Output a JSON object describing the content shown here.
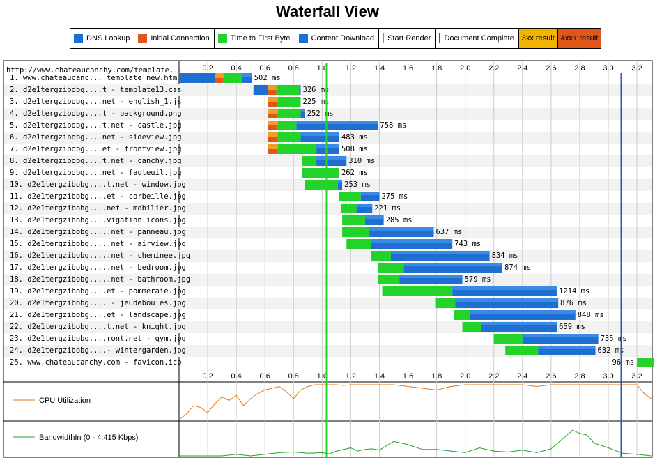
{
  "page_title": "Waterfall View",
  "legend": [
    {
      "label": "DNS Lookup",
      "kind": "swatch",
      "color": "#1f6fd0"
    },
    {
      "label": "Initial Connection",
      "kind": "swatch",
      "color": "#e0551a"
    },
    {
      "label": "Time to First Byte",
      "kind": "swatch",
      "color": "#22d32a"
    },
    {
      "label": "Content Download",
      "kind": "swatch",
      "color": "#1f6fd0"
    },
    {
      "label": "Start Render",
      "kind": "line",
      "color": "#22d32a"
    },
    {
      "label": "Document Complete",
      "kind": "line",
      "color": "#1f5fb0"
    },
    {
      "label": "3xx result",
      "kind": "fill",
      "color": "#f0b400"
    },
    {
      "label": "4xx+ result",
      "kind": "fill",
      "color": "#e0551a"
    }
  ],
  "chart_data": {
    "type": "waterfall",
    "url_header": "http://www.chateaucanchy.com/template...",
    "time_unit": "s",
    "xlim": [
      0,
      3.3
    ],
    "ticks": [
      "0.2",
      "0.4",
      "0.6",
      "0.8",
      "1.0",
      "1.2",
      "1.4",
      "1.6",
      "1.8",
      "2.0",
      "2.2",
      "2.4",
      "2.6",
      "2.8",
      "3.0",
      "3.2"
    ],
    "start_render": 1.03,
    "document_complete": 3.09,
    "requests": [
      {
        "label": "1. www.chateaucanc... template_new.html",
        "dns": [
          0.0,
          0.25
        ],
        "connect": [
          0.25,
          0.31
        ],
        "ttfb": [
          0.31,
          0.44
        ],
        "download": [
          0.44,
          0.51
        ],
        "duration": "502 ms",
        "ssl": true
      },
      {
        "label": "2. d2e1tergzibobg....t - template13.css",
        "dns": [
          0.52,
          0.62
        ],
        "connect": [
          0.62,
          0.68
        ],
        "ttfb": [
          0.68,
          0.84
        ],
        "download": [
          0.84,
          0.85
        ],
        "duration": "326 ms",
        "ssl": true
      },
      {
        "label": "3. d2e1tergzibobg....net - english_1.js",
        "connect": [
          0.62,
          0.69
        ],
        "ttfb": [
          0.69,
          0.85
        ],
        "download": [
          0.85,
          0.85
        ],
        "duration": "225 ms",
        "ssl": true
      },
      {
        "label": "4. d2e1tergzibobg....t - background.png",
        "connect": [
          0.62,
          0.69
        ],
        "ttfb": [
          0.69,
          0.85
        ],
        "download": [
          0.85,
          0.88
        ],
        "duration": "252 ms",
        "ssl": true
      },
      {
        "label": "5. d2e1tergzibobg....t.net - castle.jpg",
        "connect": [
          0.62,
          0.69
        ],
        "ttfb": [
          0.69,
          0.82
        ],
        "download": [
          0.82,
          1.39
        ],
        "duration": "758 ms",
        "ssl": true
      },
      {
        "label": "6. d2e1tergzibobg....net - sideview.jpg",
        "connect": [
          0.62,
          0.69
        ],
        "ttfb": [
          0.69,
          0.85
        ],
        "download": [
          0.85,
          1.12
        ],
        "duration": "483 ms",
        "ssl": true
      },
      {
        "label": "7. d2e1tergzibobg....et - frontview.jpg",
        "connect": [
          0.62,
          0.69
        ],
        "ttfb": [
          0.69,
          0.96
        ],
        "download": [
          0.96,
          1.12
        ],
        "duration": "508 ms",
        "ssl": true
      },
      {
        "label": "8. d2e1tergzibobg....t.net - canchy.jpg",
        "ttfb": [
          0.86,
          0.96
        ],
        "download": [
          0.96,
          1.17
        ],
        "duration": "310 ms"
      },
      {
        "label": "9. d2e1tergzibobg....net - fauteuil.jpg",
        "ttfb": [
          0.86,
          1.12
        ],
        "download": [
          1.12,
          1.12
        ],
        "duration": "262 ms"
      },
      {
        "label": "10. d2e1tergzibobg....t.net - window.jpg",
        "ttfb": [
          0.88,
          1.11
        ],
        "download": [
          1.11,
          1.14
        ],
        "duration": "253 ms"
      },
      {
        "label": "11. d2e1tergzibobg....et - corbeille.jpg",
        "ttfb": [
          1.12,
          1.27
        ],
        "download": [
          1.27,
          1.4
        ],
        "duration": "275 ms"
      },
      {
        "label": "12. d2e1tergzibobg....net - mobilier.jpg",
        "ttfb": [
          1.13,
          1.24
        ],
        "download": [
          1.24,
          1.35
        ],
        "duration": "221 ms"
      },
      {
        "label": "13. d2e1tergzibobg....vigation_icons.jpg",
        "ttfb": [
          1.14,
          1.3
        ],
        "download": [
          1.3,
          1.43
        ],
        "duration": "285 ms"
      },
      {
        "label": "14. d2e1tergzibobg.....net - panneau.jpg",
        "ttfb": [
          1.14,
          1.33
        ],
        "download": [
          1.33,
          1.78
        ],
        "duration": "637 ms"
      },
      {
        "label": "15. d2e1tergzibobg.....net - airview.jpg",
        "ttfb": [
          1.17,
          1.34
        ],
        "download": [
          1.34,
          1.91
        ],
        "duration": "743 ms"
      },
      {
        "label": "16. d2e1tergzibobg.....net - cheminee.jpg",
        "ttfb": [
          1.34,
          1.48
        ],
        "download": [
          1.48,
          2.17
        ],
        "duration": "834 ms"
      },
      {
        "label": "17. d2e1tergzibobg.....net - bedroom.jpg",
        "ttfb": [
          1.39,
          1.57
        ],
        "download": [
          1.57,
          2.26
        ],
        "duration": "874 ms"
      },
      {
        "label": "18. d2e1tergzibobg.....net - bathroom.jpg",
        "ttfb": [
          1.39,
          1.54
        ],
        "download": [
          1.54,
          1.98
        ],
        "duration": "579 ms"
      },
      {
        "label": "19. d2e1tergzibobg....et - pommeraie.jpg",
        "ttfb": [
          1.42,
          1.91
        ],
        "download": [
          1.91,
          2.64
        ],
        "duration": "1214 ms"
      },
      {
        "label": "20. d2e1tergzibobg.... - jeudeboules.jpg",
        "ttfb": [
          1.79,
          1.93
        ],
        "download": [
          1.93,
          2.65
        ],
        "duration": "876 ms"
      },
      {
        "label": "21. d2e1tergzibobg....et - landscape.jpg",
        "ttfb": [
          1.92,
          2.03
        ],
        "download": [
          2.03,
          2.77
        ],
        "duration": "848 ms"
      },
      {
        "label": "22. d2e1tergzibobg....t.net - knight.jpg",
        "ttfb": [
          1.98,
          2.11
        ],
        "download": [
          2.11,
          2.64
        ],
        "duration": "659 ms"
      },
      {
        "label": "23. d2e1tergzibobg....ront.net - gym.jpg",
        "ttfb": [
          2.2,
          2.4
        ],
        "download": [
          2.4,
          2.93
        ],
        "duration": "735 ms"
      },
      {
        "label": "24. d2e1tergzibobg....- wintergarden.jpg",
        "ttfb": [
          2.28,
          2.51
        ],
        "download": [
          2.51,
          2.91
        ],
        "duration": "632 ms"
      },
      {
        "label": "25. www.chateaucanchy.com - favicon.ico",
        "ttfb": [
          3.2,
          3.32
        ],
        "download": [
          3.32,
          3.32
        ],
        "duration": "96 ms"
      }
    ],
    "cpu": {
      "label": "CPU Utilization",
      "color": "#e07a1a",
      "t": [
        0.0,
        0.05,
        0.1,
        0.15,
        0.2,
        0.25,
        0.3,
        0.35,
        0.4,
        0.45,
        0.5,
        0.55,
        0.6,
        0.65,
        0.7,
        0.75,
        0.8,
        0.85,
        0.9,
        0.95,
        1.0,
        1.05,
        1.1,
        1.15,
        1.2,
        1.3,
        1.4,
        1.5,
        1.6,
        1.7,
        1.8,
        1.9,
        2.0,
        2.1,
        2.2,
        2.3,
        2.4,
        2.5,
        2.6,
        2.7,
        2.8,
        2.9,
        3.0,
        3.05,
        3.1,
        3.15,
        3.2,
        3.25,
        3.3
      ],
      "values": [
        0,
        15,
        40,
        35,
        20,
        45,
        65,
        55,
        70,
        40,
        60,
        75,
        85,
        90,
        95,
        80,
        60,
        85,
        95,
        100,
        100,
        100,
        100,
        98,
        100,
        100,
        100,
        100,
        95,
        90,
        85,
        95,
        100,
        100,
        100,
        100,
        100,
        95,
        100,
        100,
        100,
        100,
        100,
        100,
        100,
        100,
        100,
        75,
        60
      ]
    },
    "bandwidth": {
      "label": "BandwidthIn (0 - 4,415 Kbps)",
      "color": "#22a22a",
      "t": [
        0.0,
        0.1,
        0.2,
        0.3,
        0.4,
        0.5,
        0.6,
        0.7,
        0.8,
        0.9,
        1.0,
        1.05,
        1.1,
        1.15,
        1.2,
        1.25,
        1.3,
        1.35,
        1.4,
        1.5,
        1.6,
        1.7,
        1.8,
        1.9,
        2.0,
        2.1,
        2.2,
        2.3,
        2.4,
        2.5,
        2.6,
        2.7,
        2.75,
        2.8,
        2.85,
        2.9,
        3.0,
        3.1,
        3.2,
        3.3
      ],
      "values": [
        0,
        0,
        0,
        0,
        5,
        0,
        5,
        10,
        12,
        8,
        10,
        6,
        15,
        20,
        25,
        15,
        20,
        22,
        18,
        45,
        35,
        20,
        20,
        15,
        10,
        25,
        15,
        12,
        18,
        10,
        22,
        60,
        80,
        70,
        65,
        40,
        25,
        8,
        5,
        0
      ]
    }
  }
}
